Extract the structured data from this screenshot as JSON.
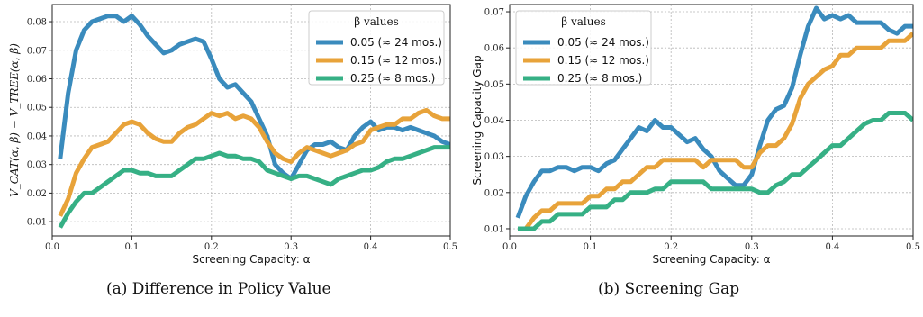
{
  "colors": {
    "blue": "#3a8bbd",
    "orange": "#e8a33a",
    "green": "#36b085",
    "grid": "#b8b8b8"
  },
  "captions": [
    "(a) Difference in Policy Value",
    "(b) Screening Gap"
  ],
  "chart_data": [
    {
      "type": "line",
      "xlabel": "Screening Capacity: α",
      "ylabel": "V_CAT(α, β) − V_TREE(α, β)",
      "xlim": [
        0,
        0.5
      ],
      "ylim": [
        0.005,
        0.086
      ],
      "xticks": [
        "0.0",
        "0.1",
        "0.2",
        "0.3",
        "0.4",
        "0.5"
      ],
      "yticks": [
        "0.01",
        "0.02",
        "0.03",
        "0.04",
        "0.05",
        "0.06",
        "0.07",
        "0.08"
      ],
      "grid": true,
      "legend": {
        "title": "β values",
        "placement": "top-right"
      },
      "series": [
        {
          "name": "0.05 (≈ 24 mos.)",
          "color": "#3a8bbd",
          "x": [
            0.01,
            0.02,
            0.03,
            0.04,
            0.05,
            0.06,
            0.07,
            0.08,
            0.09,
            0.1,
            0.11,
            0.12,
            0.13,
            0.14,
            0.15,
            0.16,
            0.17,
            0.18,
            0.19,
            0.2,
            0.21,
            0.22,
            0.23,
            0.24,
            0.25,
            0.26,
            0.27,
            0.28,
            0.29,
            0.3,
            0.31,
            0.32,
            0.33,
            0.34,
            0.35,
            0.36,
            0.37,
            0.38,
            0.39,
            0.4,
            0.41,
            0.42,
            0.43,
            0.44,
            0.45,
            0.46,
            0.47,
            0.48,
            0.49,
            0.5
          ],
          "y": [
            0.032,
            0.055,
            0.07,
            0.077,
            0.08,
            0.081,
            0.082,
            0.082,
            0.08,
            0.082,
            0.079,
            0.075,
            0.072,
            0.069,
            0.07,
            0.072,
            0.073,
            0.074,
            0.073,
            0.067,
            0.06,
            0.057,
            0.058,
            0.055,
            0.052,
            0.046,
            0.04,
            0.03,
            0.027,
            0.025,
            0.03,
            0.035,
            0.037,
            0.037,
            0.038,
            0.036,
            0.035,
            0.04,
            0.043,
            0.045,
            0.042,
            0.043,
            0.043,
            0.042,
            0.043,
            0.042,
            0.041,
            0.04,
            0.038,
            0.037
          ]
        },
        {
          "name": "0.15 (≈ 12 mos.)",
          "color": "#e8a33a",
          "x": [
            0.01,
            0.02,
            0.03,
            0.04,
            0.05,
            0.06,
            0.07,
            0.08,
            0.09,
            0.1,
            0.11,
            0.12,
            0.13,
            0.14,
            0.15,
            0.16,
            0.17,
            0.18,
            0.19,
            0.2,
            0.21,
            0.22,
            0.23,
            0.24,
            0.25,
            0.26,
            0.27,
            0.28,
            0.29,
            0.3,
            0.31,
            0.32,
            0.33,
            0.34,
            0.35,
            0.36,
            0.37,
            0.38,
            0.39,
            0.4,
            0.41,
            0.42,
            0.43,
            0.44,
            0.45,
            0.46,
            0.47,
            0.48,
            0.49,
            0.5
          ],
          "y": [
            0.012,
            0.018,
            0.027,
            0.032,
            0.036,
            0.037,
            0.038,
            0.041,
            0.044,
            0.045,
            0.044,
            0.041,
            0.039,
            0.038,
            0.038,
            0.041,
            0.043,
            0.044,
            0.046,
            0.048,
            0.047,
            0.048,
            0.046,
            0.047,
            0.046,
            0.043,
            0.038,
            0.034,
            0.032,
            0.031,
            0.034,
            0.036,
            0.035,
            0.034,
            0.033,
            0.034,
            0.035,
            0.037,
            0.038,
            0.042,
            0.043,
            0.044,
            0.044,
            0.046,
            0.046,
            0.048,
            0.049,
            0.047,
            0.046,
            0.046
          ]
        },
        {
          "name": "0.25 (≈ 8 mos.)",
          "color": "#36b085",
          "x": [
            0.01,
            0.02,
            0.03,
            0.04,
            0.05,
            0.06,
            0.07,
            0.08,
            0.09,
            0.1,
            0.11,
            0.12,
            0.13,
            0.14,
            0.15,
            0.16,
            0.17,
            0.18,
            0.19,
            0.2,
            0.21,
            0.22,
            0.23,
            0.24,
            0.25,
            0.26,
            0.27,
            0.28,
            0.29,
            0.3,
            0.31,
            0.32,
            0.33,
            0.34,
            0.35,
            0.36,
            0.37,
            0.38,
            0.39,
            0.4,
            0.41,
            0.42,
            0.43,
            0.44,
            0.45,
            0.46,
            0.47,
            0.48,
            0.49,
            0.5
          ],
          "y": [
            0.008,
            0.013,
            0.017,
            0.02,
            0.02,
            0.022,
            0.024,
            0.026,
            0.028,
            0.028,
            0.027,
            0.027,
            0.026,
            0.026,
            0.026,
            0.028,
            0.03,
            0.032,
            0.032,
            0.033,
            0.034,
            0.033,
            0.033,
            0.032,
            0.032,
            0.031,
            0.028,
            0.027,
            0.026,
            0.025,
            0.026,
            0.026,
            0.025,
            0.024,
            0.023,
            0.025,
            0.026,
            0.027,
            0.028,
            0.028,
            0.029,
            0.031,
            0.032,
            0.032,
            0.033,
            0.034,
            0.035,
            0.036,
            0.036,
            0.036
          ]
        }
      ]
    },
    {
      "type": "line",
      "xlabel": "Screening Capacity: α",
      "ylabel": "Screening Capacity Gap",
      "xlim": [
        0,
        0.5
      ],
      "ylim": [
        0.008,
        0.072
      ],
      "xticks": [
        "0.0",
        "0.1",
        "0.2",
        "0.3",
        "0.4",
        "0.5"
      ],
      "yticks": [
        "0.01",
        "0.02",
        "0.03",
        "0.04",
        "0.05",
        "0.06",
        "0.07"
      ],
      "grid": true,
      "legend": {
        "title": "β values",
        "placement": "top-left"
      },
      "series": [
        {
          "name": "0.05 (≈ 24 mos.)",
          "color": "#3a8bbd",
          "x": [
            0.01,
            0.02,
            0.03,
            0.04,
            0.05,
            0.06,
            0.07,
            0.08,
            0.09,
            0.1,
            0.11,
            0.12,
            0.13,
            0.14,
            0.15,
            0.16,
            0.17,
            0.18,
            0.19,
            0.2,
            0.21,
            0.22,
            0.23,
            0.24,
            0.25,
            0.26,
            0.27,
            0.28,
            0.29,
            0.3,
            0.31,
            0.32,
            0.33,
            0.34,
            0.35,
            0.36,
            0.37,
            0.38,
            0.39,
            0.4,
            0.41,
            0.42,
            0.43,
            0.44,
            0.45,
            0.46,
            0.47,
            0.48,
            0.49,
            0.5
          ],
          "y": [
            0.013,
            0.019,
            0.023,
            0.026,
            0.026,
            0.027,
            0.027,
            0.026,
            0.027,
            0.027,
            0.026,
            0.028,
            0.029,
            0.032,
            0.035,
            0.038,
            0.037,
            0.04,
            0.038,
            0.038,
            0.036,
            0.034,
            0.035,
            0.032,
            0.03,
            0.026,
            0.024,
            0.022,
            0.022,
            0.025,
            0.033,
            0.04,
            0.043,
            0.044,
            0.049,
            0.058,
            0.066,
            0.071,
            0.068,
            0.069,
            0.068,
            0.069,
            0.067,
            0.067,
            0.067,
            0.067,
            0.065,
            0.064,
            0.066,
            0.066
          ]
        },
        {
          "name": "0.15 (≈ 12 mos.)",
          "color": "#e8a33a",
          "x": [
            0.01,
            0.02,
            0.03,
            0.04,
            0.05,
            0.06,
            0.07,
            0.08,
            0.09,
            0.1,
            0.11,
            0.12,
            0.13,
            0.14,
            0.15,
            0.16,
            0.17,
            0.18,
            0.19,
            0.2,
            0.21,
            0.22,
            0.23,
            0.24,
            0.25,
            0.26,
            0.27,
            0.28,
            0.29,
            0.3,
            0.31,
            0.32,
            0.33,
            0.34,
            0.35,
            0.36,
            0.37,
            0.38,
            0.39,
            0.4,
            0.41,
            0.42,
            0.43,
            0.44,
            0.45,
            0.46,
            0.47,
            0.48,
            0.49,
            0.5
          ],
          "y": [
            0.01,
            0.01,
            0.013,
            0.015,
            0.015,
            0.017,
            0.017,
            0.017,
            0.017,
            0.019,
            0.019,
            0.021,
            0.021,
            0.023,
            0.023,
            0.025,
            0.027,
            0.027,
            0.029,
            0.029,
            0.029,
            0.029,
            0.029,
            0.027,
            0.029,
            0.029,
            0.029,
            0.029,
            0.027,
            0.027,
            0.031,
            0.033,
            0.033,
            0.035,
            0.039,
            0.046,
            0.05,
            0.052,
            0.054,
            0.055,
            0.058,
            0.058,
            0.06,
            0.06,
            0.06,
            0.06,
            0.062,
            0.062,
            0.062,
            0.064
          ]
        },
        {
          "name": "0.25 (≈ 8 mos.)",
          "color": "#36b085",
          "x": [
            0.01,
            0.02,
            0.03,
            0.04,
            0.05,
            0.06,
            0.07,
            0.08,
            0.09,
            0.1,
            0.11,
            0.12,
            0.13,
            0.14,
            0.15,
            0.16,
            0.17,
            0.18,
            0.19,
            0.2,
            0.21,
            0.22,
            0.23,
            0.24,
            0.25,
            0.26,
            0.27,
            0.28,
            0.29,
            0.3,
            0.31,
            0.32,
            0.33,
            0.34,
            0.35,
            0.36,
            0.37,
            0.38,
            0.39,
            0.4,
            0.41,
            0.42,
            0.43,
            0.44,
            0.45,
            0.46,
            0.47,
            0.48,
            0.49,
            0.5
          ],
          "y": [
            0.01,
            0.01,
            0.01,
            0.012,
            0.012,
            0.014,
            0.014,
            0.014,
            0.014,
            0.016,
            0.016,
            0.016,
            0.018,
            0.018,
            0.02,
            0.02,
            0.02,
            0.021,
            0.021,
            0.023,
            0.023,
            0.023,
            0.023,
            0.023,
            0.021,
            0.021,
            0.021,
            0.021,
            0.021,
            0.021,
            0.02,
            0.02,
            0.022,
            0.023,
            0.025,
            0.025,
            0.027,
            0.029,
            0.031,
            0.033,
            0.033,
            0.035,
            0.037,
            0.039,
            0.04,
            0.04,
            0.042,
            0.042,
            0.042,
            0.04
          ]
        }
      ]
    }
  ]
}
